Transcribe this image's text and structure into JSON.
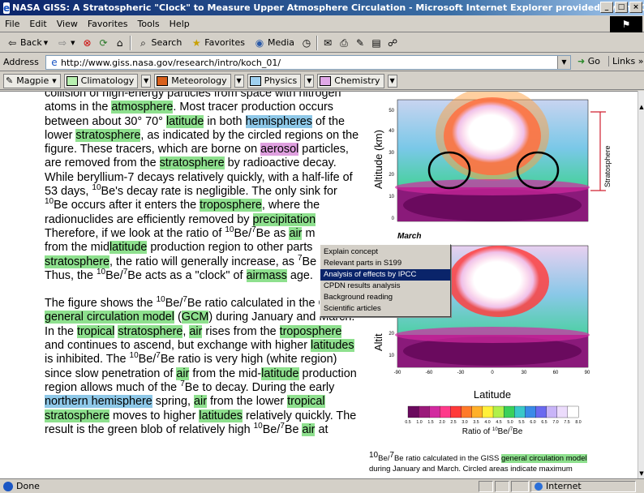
{
  "window": {
    "title": "NASA GISS: A Stratospheric \"Clock\" to Measure Upper Atmosphere Circulation - Microsoft Internet Explorer provided by The Open U",
    "controls": [
      "_",
      "□",
      "×"
    ]
  },
  "menubar": [
    "File",
    "Edit",
    "View",
    "Favorites",
    "Tools",
    "Help"
  ],
  "toolbar": {
    "back": "Back",
    "search": "Search",
    "favorites": "Favorites",
    "media": "Media"
  },
  "address": {
    "label": "Address",
    "url": "http://www.giss.nasa.gov/research/intro/koch_01/",
    "go": "Go",
    "links": "Links"
  },
  "magpie": {
    "name": "Magpie",
    "categories": [
      {
        "label": "Climatology",
        "color": "#b8f0b0"
      },
      {
        "label": "Meteorology",
        "color": "#d8601c"
      },
      {
        "label": "Physics",
        "color": "#9ed0f0"
      },
      {
        "label": "Chemistry",
        "color": "#e0a8e8"
      }
    ]
  },
  "article": {
    "p1": {
      "l1a": "collision of high-energy particles from space with nitrogen",
      "l2a": "atoms in the ",
      "l2b": "atmosphere",
      "l2c": ". Most tracer production occurs",
      "l3a": "between about 30° 70° ",
      "l3b": "latitude",
      "l3c": " in both ",
      "l3d": "hemispheres",
      "l3e": " of the",
      "l4a": "lower ",
      "l4b": "stratosphere",
      "l4c": ", as indicated by the circled regions on the",
      "l5a": "figure. These tracers, which are borne on ",
      "l5b": "aerosol",
      "l5c": " particles,",
      "l6a": "are removed from the ",
      "l6b": "stratosphere",
      "l6c": " by radioactive decay.",
      "l7a": "While beryllium-7 decays relatively quickly, with a half-life of",
      "l8a": "53 days, ",
      "l8b": "Be's decay rate is negligible. The only sink for",
      "l9b": "Be occurs after it enters the ",
      "l9c": "troposphere",
      "l9d": ", where the",
      "l10a": "radionuclides are efficiently removed by ",
      "l10b": "precipitation",
      "l11a": "Therefore, if we look at the ratio of ",
      "l11b": "Be/",
      "l11c": "Be as ",
      "l11d": "air",
      "l11e": " m",
      "l12a": "from the mid",
      "l12b": "latitude",
      "l12c": " production region to other parts",
      "l13a": "stratosphere",
      "l13b": ", the ratio will generally increase, as ",
      "l13c": "Be",
      "l14a": "Thus, the ",
      "l14b": "Be/",
      "l14c": "Be acts as a \"clock\" of ",
      "l14d": "airmass",
      "l14e": " age."
    },
    "p2": {
      "l1a": "The figure shows the ",
      "l1b": "Be/",
      "l1c": "Be ratio calculated in the GISS",
      "l2a": "general circulation model",
      "l2b": " (",
      "l2c": "GCM",
      "l2d": ") during January and March.",
      "l3a": "In the ",
      "l3b": "tropical",
      "l3c": " ",
      "l3d": "stratosphere",
      "l3e": ", ",
      "l3f": "air",
      "l3g": " rises from the ",
      "l3h": "troposphere",
      "l4a": "and continues to ascend, but exchange with higher ",
      "l4b": "latitudes",
      "l5a": "is inhibited. The ",
      "l5b": "Be/",
      "l5c": "Be ratio is very high (white region)",
      "l6a": "since slow penetration of ",
      "l6b": "air",
      "l6c": " from the mid-",
      "l6d": "latitude",
      "l6e": " production",
      "l7a": "region allows much of the ",
      "l7b": "Be to decay. During the early",
      "l8a": "northern hemisphere",
      "l8b": " spring, ",
      "l8c": "air",
      "l8d": " from the lower ",
      "l8e": "tropical",
      "l9a": "stratosphere",
      "l9b": " moves to higher ",
      "l9c": "latitudes",
      "l9d": " relatively quickly. The",
      "l10a": "result is the green blob of relatively high ",
      "l10b": "Be/",
      "l10c": "Be ",
      "l10d": "air",
      "l10e": " at"
    },
    "sup10": "10",
    "sup7": "7"
  },
  "figure": {
    "ylabel_top": "Altitude (km)",
    "ylabel_bottom": "Altit",
    "stratosphere_label": "Stratosphere",
    "march_label": "March",
    "xlabel": "Latitude",
    "yticks": [
      "50",
      "40",
      "30",
      "20",
      "10",
      "0"
    ],
    "yticks_bottom": [
      "20",
      "10"
    ],
    "xticks": [
      "-90",
      "-60",
      "-30",
      "0",
      "30",
      "60",
      "90"
    ],
    "colorbar_ticks": [
      "0.5",
      "1.0",
      "1.5",
      "2.0",
      "2.5",
      "3.0",
      "3.5",
      "4.0",
      "4.5",
      "5.0",
      "5.5",
      "6.0",
      "6.5",
      "7.0",
      "7.5",
      "8.0"
    ],
    "colorbar_label_pre": "Ratio of ",
    "colorbar_label_mid": "Be/",
    "colorbar_label_post": "Be",
    "colors": [
      "#6a0a5e",
      "#9a1a7a",
      "#d22aa0",
      "#ff3a8a",
      "#ff3a3a",
      "#ff7a2a",
      "#ffb02a",
      "#fff03a",
      "#b0f04a",
      "#3ad05a",
      "#3ac8c8",
      "#3a8ae8",
      "#6a6af0",
      "#c8b4f8",
      "#ecdcfc",
      "#ffffff"
    ]
  },
  "caption": {
    "a": "Be/",
    "b": "Be ratio calculated in the GISS ",
    "c": "general circulation model",
    "d": "during January and March. Circled areas indicate maximum"
  },
  "context_menu": {
    "items": [
      "Explain concept",
      "Relevant parts in S199",
      "Analysis of effects by IPCC",
      "CPDN results analysis",
      "Background reading",
      "Scientific articles"
    ],
    "selected_index": 2
  },
  "status": {
    "text": "Done",
    "zone": "Internet"
  }
}
